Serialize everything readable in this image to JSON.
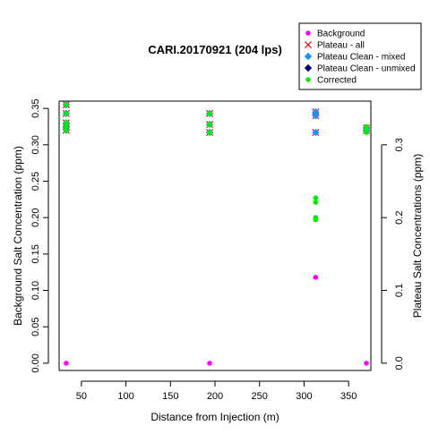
{
  "chart_data": {
    "type": "scatter",
    "title": "CARI.20170921 (204 lps)",
    "xlabel": "Distance from Injection (m)",
    "ylabel": "Background Salt Concentration (ppm)",
    "y2label": "Plateau Salt Concentrations (ppm)",
    "xlim": [
      25,
      375
    ],
    "ylim": [
      -0.01,
      0.36
    ],
    "xticks": [
      50,
      100,
      150,
      200,
      250,
      300,
      350
    ],
    "yticks": [
      0.0,
      0.05,
      0.1,
      0.15,
      0.2,
      0.25,
      0.3,
      0.35
    ],
    "y2lim": [
      -0.01,
      0.36
    ],
    "y2ticks": [
      0.0,
      0.1,
      0.2,
      0.3
    ],
    "ytick_labels": [
      "0.00",
      "0.05",
      "0.10",
      "0.15",
      "0.20",
      "0.25",
      "0.30",
      "0.35"
    ],
    "y2tick_labels": [
      "0.0",
      "0.1",
      "0.2",
      "0.3"
    ],
    "grid": false,
    "legend_position": "top-right",
    "series": [
      {
        "name": "Background",
        "color": "#ff00ff",
        "marker": "dot",
        "points": [
          [
            33,
            0.0
          ],
          [
            194,
            0.0
          ],
          [
            313,
            0.118
          ],
          [
            370,
            0.0
          ]
        ]
      },
      {
        "name": "Plateau - all",
        "color": "#ff0000",
        "marker": "x",
        "points": [
          [
            33,
            0.355
          ],
          [
            33,
            0.343
          ],
          [
            33,
            0.33
          ],
          [
            33,
            0.325
          ],
          [
            33,
            0.32
          ],
          [
            194,
            0.343
          ],
          [
            194,
            0.328
          ],
          [
            194,
            0.317
          ],
          [
            313,
            0.345
          ],
          [
            313,
            0.34
          ],
          [
            313,
            0.317
          ],
          [
            370,
            0.323
          ],
          [
            370,
            0.32
          ]
        ]
      },
      {
        "name": "Plateau Clean - mixed",
        "color": "#1e90ff",
        "marker": "diamond",
        "points": [
          [
            33,
            0.355
          ],
          [
            33,
            0.343
          ],
          [
            33,
            0.33
          ],
          [
            33,
            0.325
          ],
          [
            33,
            0.32
          ],
          [
            194,
            0.343
          ],
          [
            194,
            0.328
          ],
          [
            194,
            0.317
          ],
          [
            313,
            0.345
          ],
          [
            313,
            0.34
          ],
          [
            313,
            0.317
          ],
          [
            370,
            0.323
          ],
          [
            370,
            0.32
          ]
        ]
      },
      {
        "name": "Plateau Clean - unmixed",
        "color": "#000080",
        "marker": "diamond",
        "points": []
      },
      {
        "name": "Corrected",
        "color": "#00ee00",
        "marker": "dot",
        "points": [
          [
            33,
            0.355
          ],
          [
            33,
            0.343
          ],
          [
            33,
            0.33
          ],
          [
            33,
            0.325
          ],
          [
            33,
            0.32
          ],
          [
            194,
            0.343
          ],
          [
            194,
            0.328
          ],
          [
            194,
            0.317
          ],
          [
            313,
            0.227
          ],
          [
            313,
            0.221
          ],
          [
            313,
            0.2
          ],
          [
            313,
            0.197
          ],
          [
            370,
            0.325
          ],
          [
            370,
            0.32
          ],
          [
            370,
            0.317
          ]
        ]
      }
    ]
  }
}
